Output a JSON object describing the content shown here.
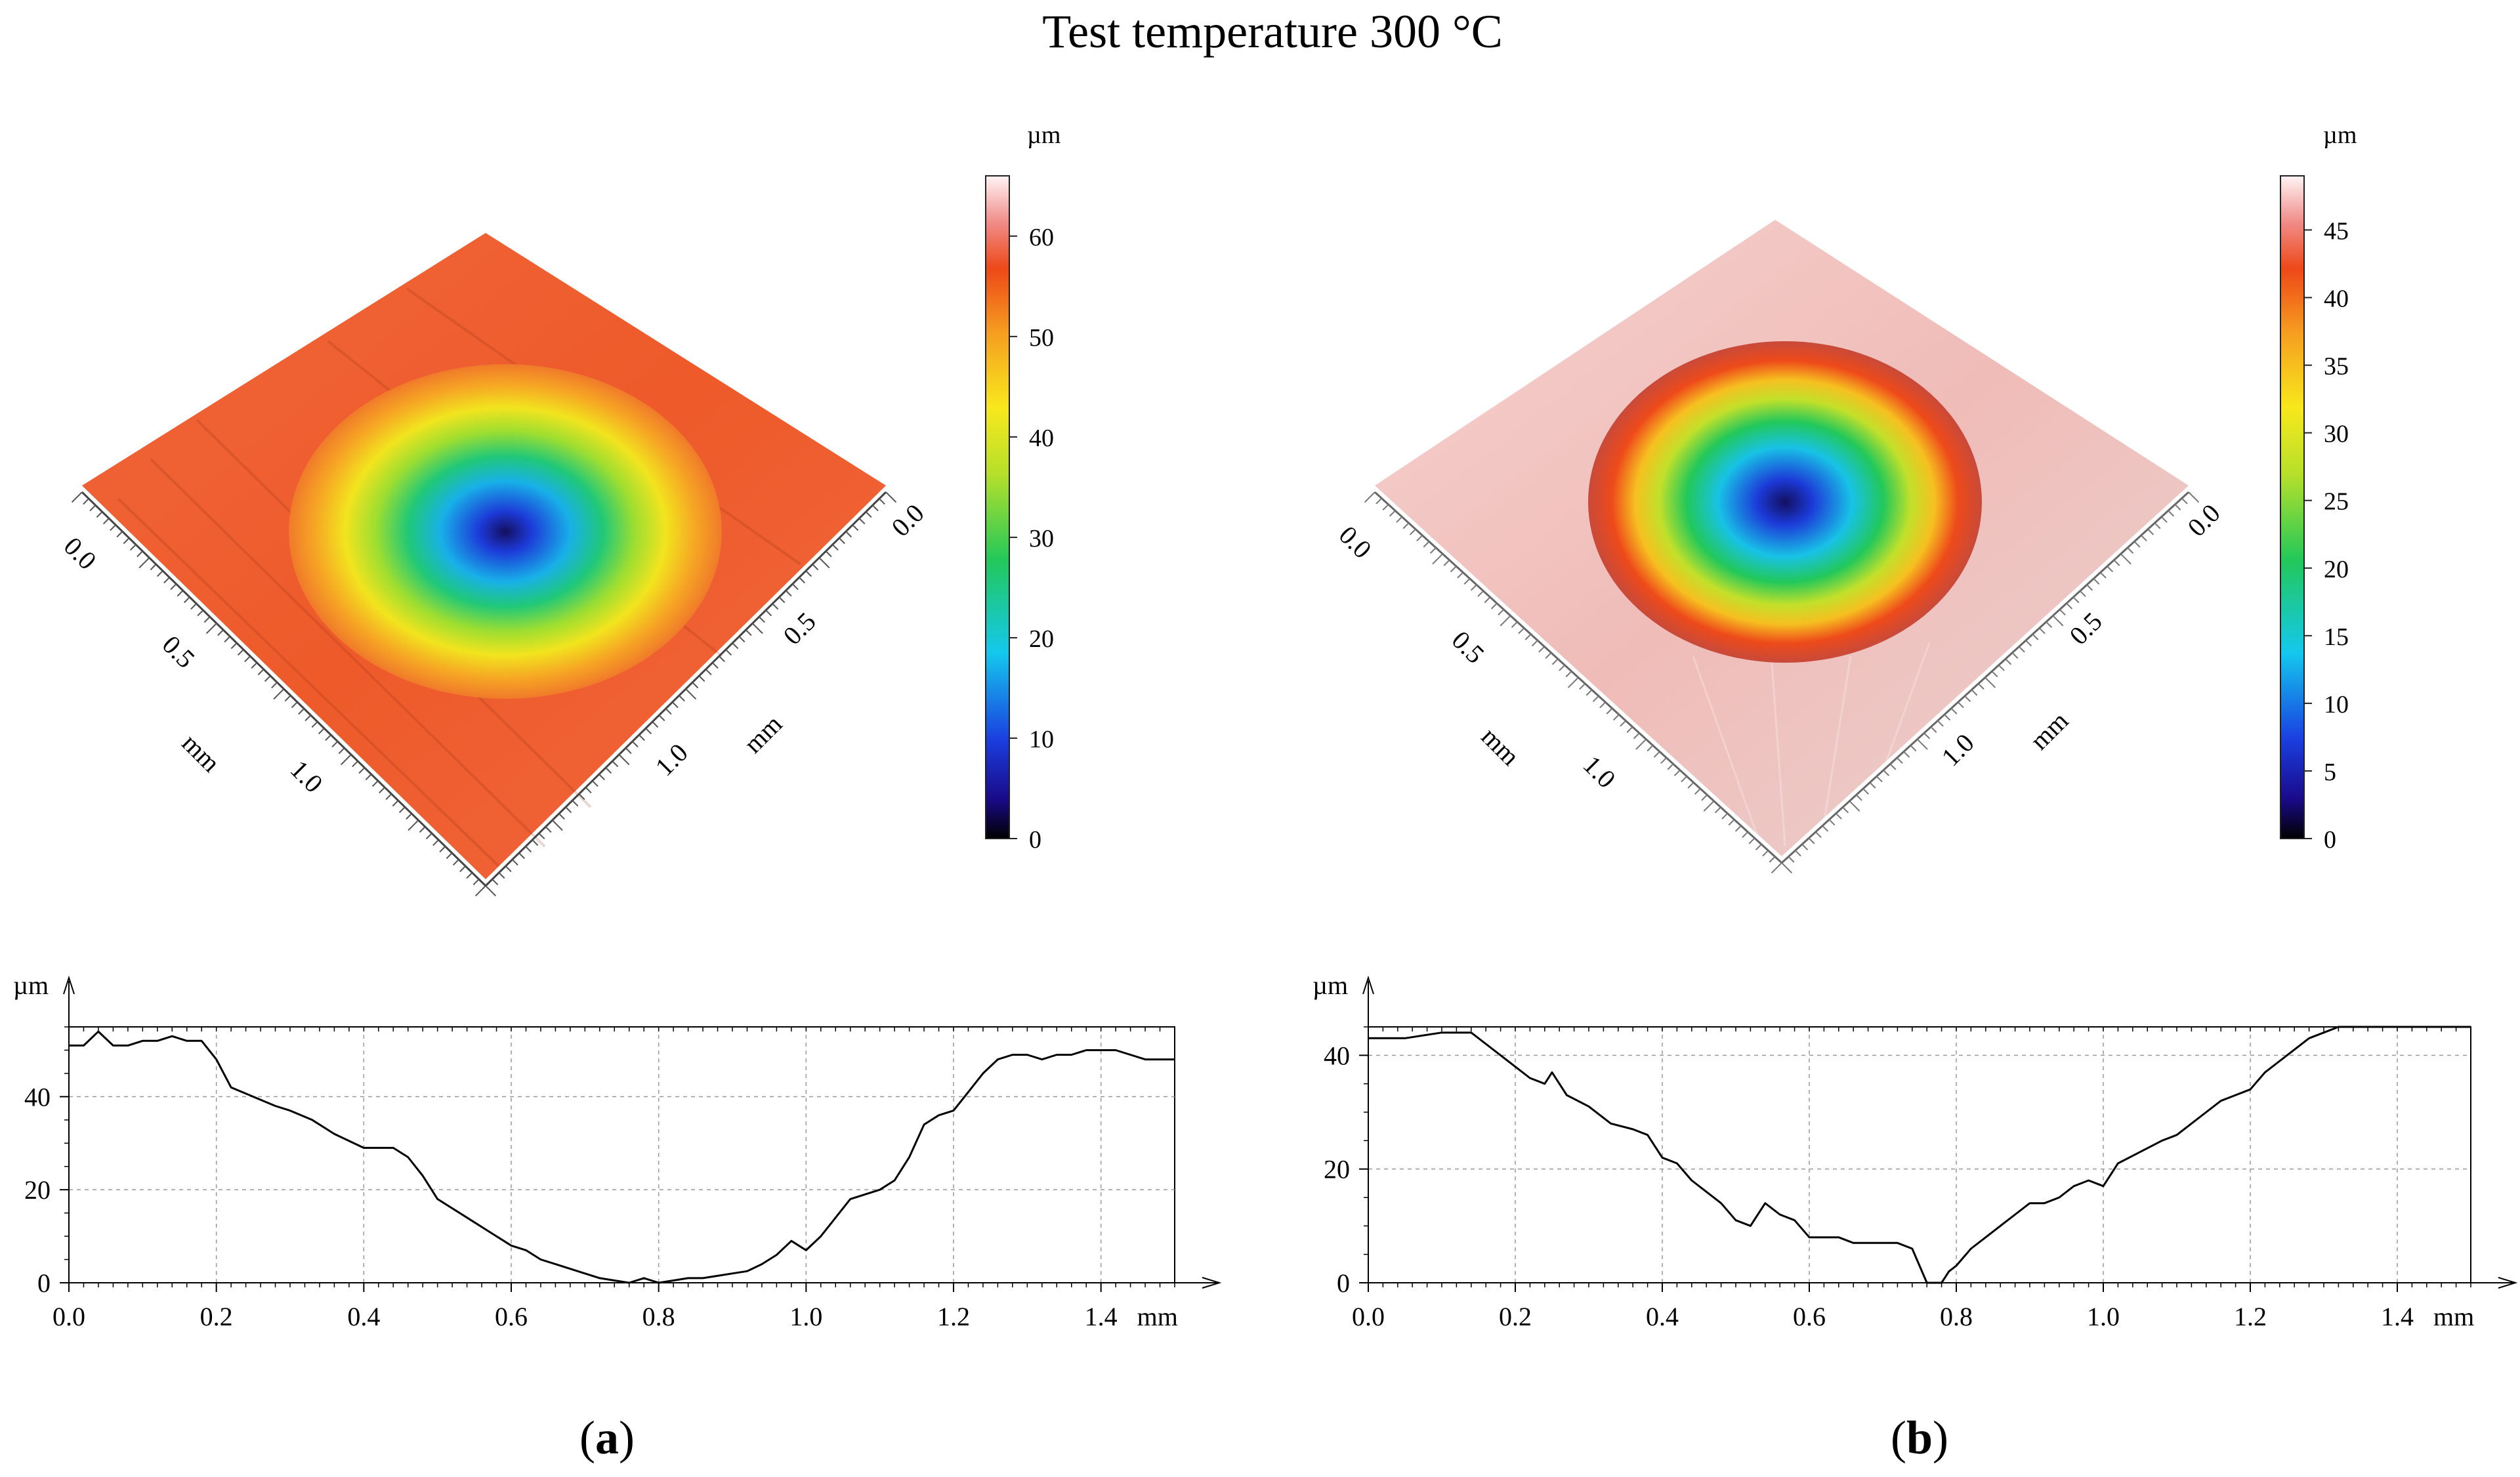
{
  "figure": {
    "title": "Test temperature 300 °C"
  },
  "panels": [
    {
      "id": "a",
      "caption": "a",
      "surface": {
        "type": "3d-surface",
        "unit": "µm",
        "axis_unit": "mm",
        "axis_ticks": [
          "0.0",
          "0.5",
          "1.0"
        ],
        "colorbar_ticks": [
          0,
          10,
          20,
          30,
          40,
          50,
          60
        ],
        "colorbar_max": 66,
        "base_color": "#ee5a2a",
        "description": "crater"
      },
      "profile": {
        "type": "line",
        "ylabel": "µm",
        "xunit": "mm",
        "xlim": [
          0,
          1.5
        ],
        "ylim": [
          0,
          55
        ],
        "yticks": [
          0,
          20,
          40
        ],
        "xticks": [
          "0.0",
          "0.2",
          "0.4",
          "0.6",
          "0.8",
          "1.0",
          "1.2",
          "1.4"
        ],
        "x": [
          0.0,
          0.02,
          0.04,
          0.06,
          0.08,
          0.1,
          0.12,
          0.14,
          0.16,
          0.18,
          0.2,
          0.22,
          0.25,
          0.28,
          0.3,
          0.33,
          0.36,
          0.4,
          0.44,
          0.46,
          0.48,
          0.5,
          0.54,
          0.58,
          0.6,
          0.62,
          0.64,
          0.66,
          0.68,
          0.7,
          0.72,
          0.74,
          0.76,
          0.78,
          0.8,
          0.82,
          0.84,
          0.86,
          0.88,
          0.9,
          0.92,
          0.94,
          0.96,
          0.98,
          1.0,
          1.02,
          1.04,
          1.06,
          1.08,
          1.1,
          1.12,
          1.14,
          1.16,
          1.18,
          1.2,
          1.22,
          1.24,
          1.26,
          1.28,
          1.3,
          1.32,
          1.34,
          1.36,
          1.38,
          1.4,
          1.42,
          1.44,
          1.46,
          1.48,
          1.5
        ],
        "y": [
          51,
          51,
          54,
          51,
          51,
          52,
          52,
          53,
          52,
          52,
          48,
          42,
          40,
          38,
          37,
          35,
          32,
          29,
          29,
          27,
          23,
          18,
          14,
          10,
          8,
          7,
          5,
          4,
          3,
          2,
          1,
          0.5,
          0,
          1,
          0,
          0.5,
          1,
          1,
          1.5,
          2,
          2.5,
          4,
          6,
          9,
          7,
          10,
          14,
          18,
          19,
          20,
          22,
          27,
          34,
          36,
          37,
          41,
          45,
          48,
          49,
          49,
          48,
          49,
          49,
          50,
          50,
          50,
          49,
          48,
          48,
          48
        ]
      }
    },
    {
      "id": "b",
      "caption": "b",
      "surface": {
        "type": "3d-surface",
        "unit": "µm",
        "axis_unit": "mm",
        "axis_ticks": [
          "0.0",
          "0.5",
          "1.0"
        ],
        "colorbar_ticks": [
          0,
          5,
          10,
          15,
          20,
          25,
          30,
          35,
          40,
          45
        ],
        "colorbar_max": 49,
        "base_color": "#f1c4c0",
        "description": "crater"
      },
      "profile": {
        "type": "line",
        "ylabel": "µm",
        "xunit": "mm",
        "xlim": [
          0,
          1.5
        ],
        "ylim": [
          0,
          45
        ],
        "yticks": [
          0,
          20,
          40
        ],
        "xticks": [
          "0.0",
          "0.2",
          "0.4",
          "0.6",
          "0.8",
          "1.0",
          "1.2",
          "1.4"
        ],
        "x": [
          0.0,
          0.05,
          0.1,
          0.14,
          0.16,
          0.18,
          0.2,
          0.22,
          0.24,
          0.25,
          0.27,
          0.3,
          0.33,
          0.36,
          0.38,
          0.4,
          0.42,
          0.44,
          0.46,
          0.48,
          0.5,
          0.52,
          0.54,
          0.56,
          0.58,
          0.6,
          0.62,
          0.64,
          0.66,
          0.68,
          0.7,
          0.72,
          0.74,
          0.75,
          0.76,
          0.77,
          0.78,
          0.79,
          0.8,
          0.82,
          0.84,
          0.86,
          0.88,
          0.9,
          0.92,
          0.94,
          0.96,
          0.98,
          1.0,
          1.02,
          1.05,
          1.08,
          1.1,
          1.12,
          1.14,
          1.16,
          1.18,
          1.2,
          1.22,
          1.24,
          1.26,
          1.28,
          1.3,
          1.32,
          1.34,
          1.36,
          1.4,
          1.45,
          1.5
        ],
        "y": [
          43,
          43,
          44,
          44,
          42,
          40,
          38,
          36,
          35,
          37,
          33,
          31,
          28,
          27,
          26,
          22,
          21,
          18,
          16,
          14,
          11,
          10,
          14,
          12,
          11,
          8,
          8,
          8,
          7,
          7,
          7,
          7,
          6,
          3,
          0,
          0,
          0,
          2,
          3,
          6,
          8,
          10,
          12,
          14,
          14,
          15,
          17,
          18,
          17,
          21,
          23,
          25,
          26,
          28,
          30,
          32,
          33,
          34,
          37,
          39,
          41,
          43,
          44,
          45,
          45,
          45,
          45,
          45,
          45
        ]
      }
    }
  ]
}
